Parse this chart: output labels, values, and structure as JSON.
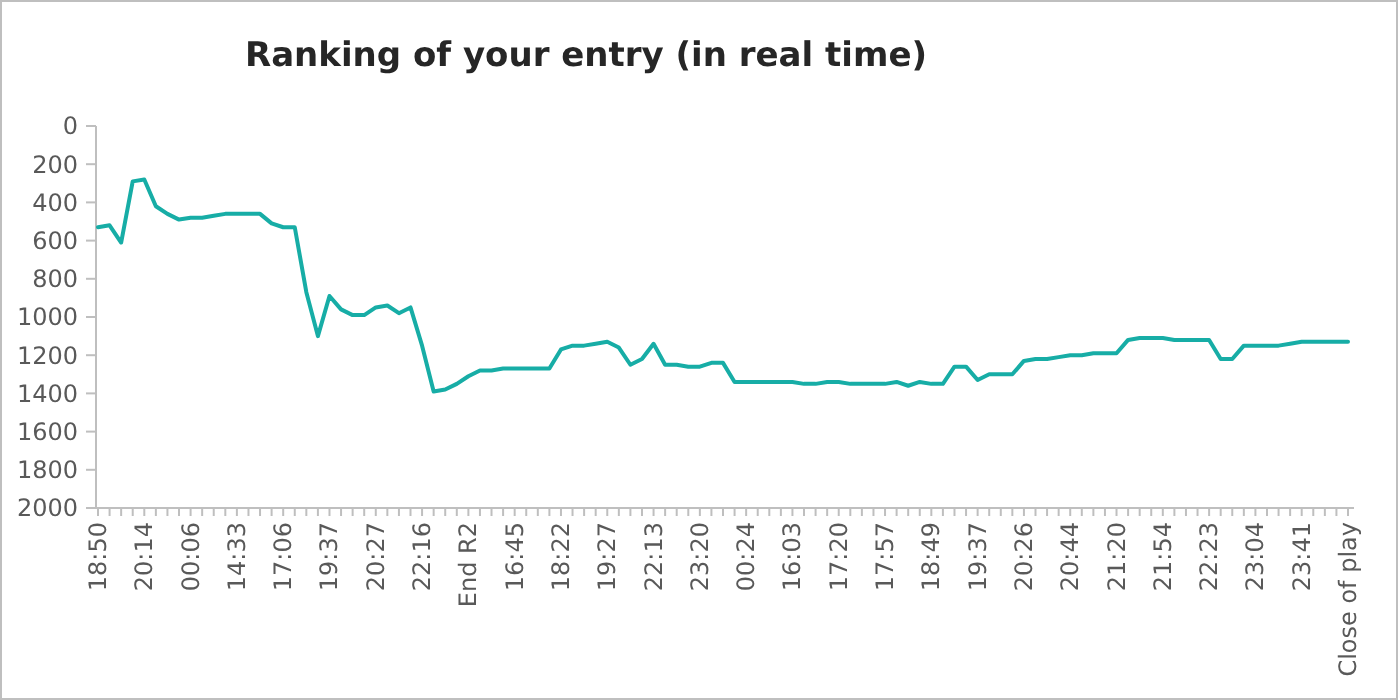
{
  "chart_data": {
    "type": "line",
    "title": "Ranking of your entry (in real time)",
    "categories": [
      "18:50",
      null,
      null,
      null,
      "20:14",
      null,
      null,
      null,
      "00:06",
      null,
      null,
      null,
      "14:33",
      null,
      null,
      null,
      "17:06",
      null,
      null,
      null,
      "19:37",
      null,
      null,
      null,
      "20:27",
      null,
      null,
      null,
      "22:16",
      null,
      null,
      null,
      "End R2",
      null,
      null,
      null,
      "16:45",
      null,
      null,
      null,
      "18:22",
      null,
      null,
      null,
      "19:27",
      null,
      null,
      null,
      "22:13",
      null,
      null,
      null,
      "23:20",
      null,
      null,
      null,
      "00:24",
      null,
      null,
      null,
      "16:03",
      null,
      null,
      null,
      "17:20",
      null,
      null,
      null,
      "17:57",
      null,
      null,
      null,
      "18:49",
      null,
      null,
      null,
      "19:37",
      null,
      null,
      null,
      "20:26",
      null,
      null,
      null,
      "20:44",
      null,
      null,
      null,
      "21:20",
      null,
      null,
      null,
      "21:54",
      null,
      null,
      null,
      "22:23",
      null,
      null,
      null,
      "23:04",
      null,
      null,
      null,
      "23:41",
      null,
      null,
      null,
      "Close of play"
    ],
    "series": [
      {
        "color": "#17ada6",
        "values": [
          530,
          520,
          610,
          290,
          280,
          420,
          460,
          490,
          480,
          480,
          470,
          460,
          460,
          460,
          460,
          510,
          530,
          530,
          870,
          1100,
          890,
          960,
          990,
          990,
          950,
          940,
          980,
          950,
          1150,
          1390,
          1380,
          1350,
          1310,
          1280,
          1280,
          1270,
          1270,
          1270,
          1270,
          1270,
          1170,
          1150,
          1150,
          1140,
          1130,
          1160,
          1250,
          1220,
          1140,
          1250,
          1250,
          1260,
          1260,
          1240,
          1240,
          1340,
          1340,
          1340,
          1340,
          1340,
          1340,
          1350,
          1350,
          1340,
          1340,
          1350,
          1350,
          1350,
          1350,
          1340,
          1360,
          1340,
          1350,
          1350,
          1260,
          1260,
          1330,
          1300,
          1300,
          1300,
          1230,
          1220,
          1220,
          1210,
          1200,
          1200,
          1190,
          1190,
          1190,
          1120,
          1110,
          1110,
          1110,
          1120,
          1120,
          1120,
          1120,
          1220,
          1220,
          1150,
          1150,
          1150,
          1150,
          1140,
          1130,
          1130,
          1130,
          1130,
          1130
        ]
      }
    ],
    "ylim": [
      2000,
      0
    ],
    "yticks": [
      0,
      200,
      400,
      600,
      800,
      1000,
      1200,
      1400,
      1600,
      1800,
      2000
    ],
    "grid": false,
    "marker": "none",
    "line_style": "solid"
  }
}
